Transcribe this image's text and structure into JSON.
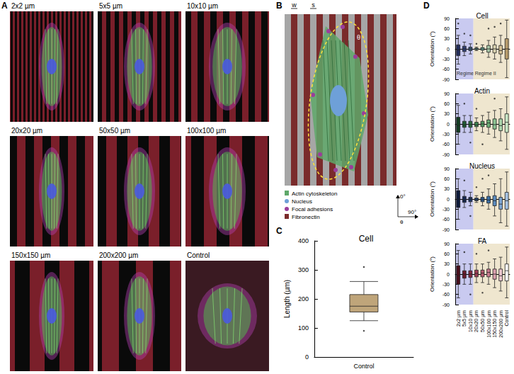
{
  "panel_labels": [
    "A",
    "B",
    "C",
    "D"
  ],
  "panel_a": {
    "images": [
      "2x2 µm",
      "5x5 µm",
      "10x10 µm",
      "20x20 µm",
      "50x50 µm",
      "100x100 µm",
      "150x150 µm",
      "200x200 µm",
      "Control"
    ]
  },
  "panel_b": {
    "width_label": "w",
    "spacing_label": "s",
    "angle_label": "θ",
    "axis_labels": [
      "0°",
      "90°"
    ],
    "legend": [
      {
        "label": "Actin cytoskeleton",
        "color": "#5fa86a"
      },
      {
        "label": "Nucleus",
        "color": "#6ea0d8"
      },
      {
        "label": "Focal adhesions",
        "color": "#9b3d9b"
      },
      {
        "label": "Fibronectin",
        "color": "#7a2b2b"
      }
    ]
  },
  "chart_data": [
    {
      "type": "boxplot",
      "title": "Cell",
      "y_label": "Length (µm)",
      "categories": [
        "Control"
      ],
      "values": [
        [
          125,
          155,
          175,
          215,
          260
        ]
      ],
      "outliers": [
        [
          "Control",
          310
        ],
        [
          "Control",
          90
        ]
      ],
      "colors": [
        "#bfa57a"
      ],
      "ylim": [
        0,
        400
      ],
      "yticks": [
        0,
        100,
        200,
        300,
        400
      ],
      "grid": false
    },
    {
      "type": "boxplot",
      "title": "Cell",
      "y_label": "Orientation (°)",
      "categories": [
        "2x2 µm",
        "5x5 µm",
        "10x10 µm",
        "20x20 µm",
        "50x50 µm",
        "100x100 µm",
        "150x150 µm",
        "200x200 µm",
        "Control"
      ],
      "values": [
        [
          -45,
          -20,
          -3,
          12,
          40
        ],
        [
          -20,
          -8,
          0,
          8,
          20
        ],
        [
          -15,
          -5,
          0,
          5,
          15
        ],
        [
          -5,
          -2,
          0,
          2,
          5
        ],
        [
          -12,
          -4,
          0,
          4,
          12
        ],
        [
          -25,
          -10,
          0,
          10,
          25
        ],
        [
          -30,
          -12,
          0,
          12,
          35
        ],
        [
          -40,
          -15,
          -5,
          10,
          40
        ],
        [
          -85,
          -30,
          0,
          30,
          85
        ]
      ],
      "outliers": [
        [
          "2x2 µm",
          75
        ],
        [
          "5x5 µm",
          45
        ],
        [
          "10x10 µm",
          40
        ],
        [
          "20x20 µm",
          15
        ],
        [
          "100x100 µm",
          60
        ],
        [
          "150x150 µm",
          65
        ],
        [
          "200x200 µm",
          75
        ]
      ],
      "colors": [
        "#232d5c",
        "#2f3e73",
        "#3a5a7e",
        "#3f8f86",
        "#6fb3a0",
        "#a8c7a8",
        "#d9d2b0",
        "#d4c196",
        "#b89c6c"
      ],
      "regions": [
        {
          "from": "2x2 µm",
          "to": "10x10 µm",
          "label": "Regime I",
          "color": "#c9caf0"
        },
        {
          "from": "20x20 µm",
          "to": "Control",
          "label": "Regime II",
          "color": "#efe6cf"
        }
      ],
      "ylim": [
        -90,
        90
      ],
      "yticks": [
        -90,
        -60,
        -30,
        0,
        30,
        60,
        90
      ],
      "tick_labels": "y",
      "grid": false
    },
    {
      "type": "boxplot",
      "title": "Actin",
      "y_label": "Orientation (°)",
      "categories": [
        "2x2 µm",
        "5x5 µm",
        "10x10 µm",
        "20x20 µm",
        "50x50 µm",
        "100x100 µm",
        "150x150 µm",
        "200x200 µm",
        "Control"
      ],
      "values": [
        [
          -60,
          -25,
          -5,
          20,
          55
        ],
        [
          -25,
          -10,
          -3,
          8,
          25
        ],
        [
          -25,
          -10,
          -2,
          8,
          25
        ],
        [
          -20,
          -8,
          -3,
          5,
          18
        ],
        [
          -25,
          -8,
          0,
          8,
          25
        ],
        [
          -30,
          -10,
          3,
          12,
          35
        ],
        [
          -40,
          -15,
          -2,
          15,
          40
        ],
        [
          -50,
          -20,
          -5,
          15,
          45
        ],
        [
          -75,
          -25,
          5,
          30,
          80
        ]
      ],
      "outliers": [
        [
          "5x5 µm",
          60
        ],
        [
          "10x10 µm",
          -55
        ],
        [
          "20x20 µm",
          45
        ],
        [
          "50x50 µm",
          -60
        ],
        [
          "150x150 µm",
          75
        ]
      ],
      "colors": [
        "#143d22",
        "#1f5a33",
        "#2b6e40",
        "#3c8550",
        "#4f9a60",
        "#6aae75",
        "#8cc393",
        "#a9d4ab",
        "#c8e6c5"
      ],
      "regions": [
        {
          "from": "2x2 µm",
          "to": "10x10 µm",
          "color": "#c9caf0"
        },
        {
          "from": "20x20 µm",
          "to": "Control",
          "color": "#efe6cf"
        }
      ],
      "ylim": [
        -90,
        90
      ],
      "yticks": [
        -90,
        -60,
        -30,
        0,
        30,
        60,
        90
      ],
      "tick_labels": "y",
      "grid": false
    },
    {
      "type": "boxplot",
      "title": "Nucleus",
      "y_label": "Orientation (°)",
      "categories": [
        "2x2 µm",
        "5x5 µm",
        "10x10 µm",
        "20x20 µm",
        "50x50 µm",
        "100x100 µm",
        "150x150 µm",
        "200x200 µm",
        "Control"
      ],
      "values": [
        [
          -60,
          -25,
          0,
          25,
          60
        ],
        [
          -25,
          -10,
          -3,
          8,
          25
        ],
        [
          -20,
          -8,
          0,
          5,
          20
        ],
        [
          -10,
          -5,
          -2,
          3,
          10
        ],
        [
          -20,
          -8,
          -2,
          5,
          20
        ],
        [
          -30,
          -12,
          -3,
          8,
          30
        ],
        [
          -50,
          -20,
          -5,
          10,
          45
        ],
        [
          -70,
          -30,
          -15,
          5,
          60
        ],
        [
          -80,
          -30,
          -5,
          20,
          80
        ]
      ],
      "outliers": [
        [
          "5x5 µm",
          55
        ],
        [
          "10x10 µm",
          -50
        ],
        [
          "20x20 µm",
          35
        ],
        [
          "50x50 µm",
          60
        ],
        [
          "100x100 µm",
          70
        ]
      ],
      "colors": [
        "#0e1a3a",
        "#14264f",
        "#1d3563",
        "#234678",
        "#2c5a8f",
        "#3a6fa6",
        "#5a8bbf",
        "#7ea6d2",
        "#a6c3e3"
      ],
      "regions": [
        {
          "from": "2x2 µm",
          "to": "10x10 µm",
          "color": "#c9caf0"
        },
        {
          "from": "20x20 µm",
          "to": "Control",
          "color": "#efe6cf"
        }
      ],
      "ylim": [
        -90,
        90
      ],
      "yticks": [
        -90,
        -60,
        -30,
        0,
        30,
        60,
        90
      ],
      "tick_labels": "y",
      "grid": false
    },
    {
      "type": "boxplot",
      "title": "FA",
      "y_label": "Orientation (°)",
      "categories": [
        "2x2 µm",
        "5x5 µm",
        "10x10 µm",
        "20x20 µm",
        "50x50 µm",
        "100x100 µm",
        "150x150 µm",
        "200x200 µm",
        "Control"
      ],
      "values": [
        [
          -70,
          -30,
          -5,
          25,
          70
        ],
        [
          -30,
          -12,
          0,
          10,
          30
        ],
        [
          -30,
          -10,
          0,
          10,
          30
        ],
        [
          -25,
          -8,
          2,
          12,
          30
        ],
        [
          -25,
          -8,
          3,
          12,
          30
        ],
        [
          -30,
          -8,
          5,
          15,
          35
        ],
        [
          -40,
          -15,
          0,
          15,
          45
        ],
        [
          -50,
          -20,
          -5,
          15,
          50
        ],
        [
          -70,
          -20,
          10,
          30,
          80
        ]
      ],
      "outliers": [
        [
          "5x5 µm",
          65
        ],
        [
          "10x10 µm",
          -60
        ],
        [
          "20x20 µm",
          60
        ],
        [
          "50x50 µm",
          -55
        ],
        [
          "100x100 µm",
          70
        ]
      ],
      "colors": [
        "#4a0f1c",
        "#6a1a2c",
        "#85283e",
        "#9e3d54",
        "#b5586e",
        "#c97b8e",
        "#dba0ae",
        "#ebc6ce",
        "#ffffff"
      ],
      "regions": [
        {
          "from": "2x2 µm",
          "to": "10x10 µm",
          "color": "#c9caf0"
        },
        {
          "from": "20x20 µm",
          "to": "Control",
          "color": "#efe6cf"
        }
      ],
      "ylim": [
        -90,
        90
      ],
      "yticks": [
        -90,
        -60,
        -30,
        0,
        30,
        60,
        90
      ],
      "grid": false
    }
  ]
}
